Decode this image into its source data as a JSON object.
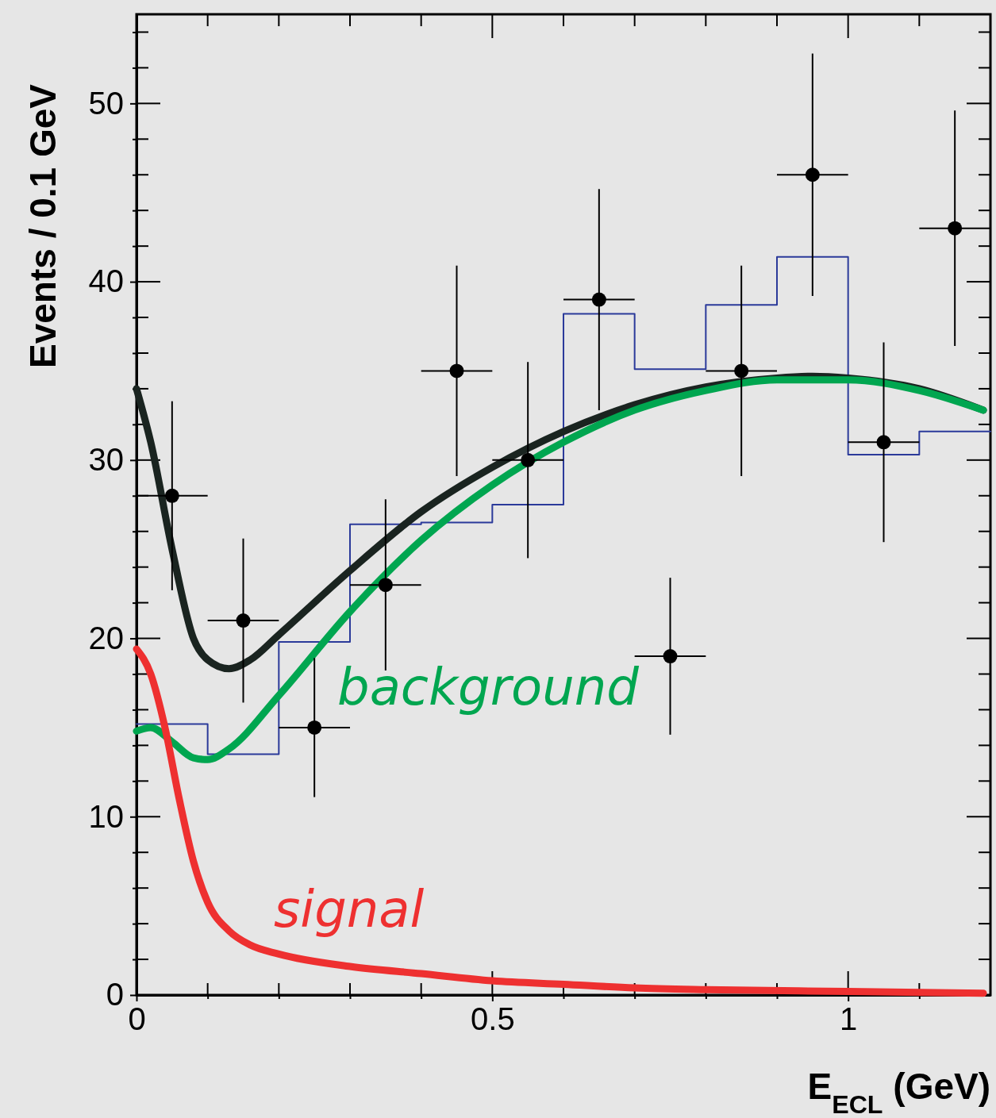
{
  "chart_data": {
    "type": "scatter",
    "xlabel": "E$_{ECL}$ (GeV)",
    "ylabel": "Events / 0.1 GeV",
    "xlim": [
      0,
      1.2
    ],
    "ylim": [
      0,
      55
    ],
    "xticks": [
      0,
      {
        "value": 0.1,
        "label": null
      },
      {
        "value": 0.2,
        "label": null
      },
      {
        "value": 0.3,
        "label": null
      },
      {
        "value": 0.4,
        "label": null
      },
      0.5,
      {
        "value": 0.6,
        "label": null
      },
      {
        "value": 0.7,
        "label": null
      },
      {
        "value": 0.8,
        "label": null
      },
      {
        "value": 0.9,
        "label": null
      },
      1,
      {
        "value": 1.1,
        "label": null
      }
    ],
    "yticks": [
      0,
      {
        "value": 2,
        "label": null
      },
      {
        "value": 4,
        "label": null
      },
      {
        "value": 6,
        "label": null
      },
      {
        "value": 8,
        "label": null
      },
      10,
      {
        "value": 12,
        "label": null
      },
      {
        "value": 14,
        "label": null
      },
      {
        "value": 16,
        "label": null
      },
      {
        "value": 18,
        "label": null
      },
      20,
      {
        "value": 22,
        "label": null
      },
      {
        "value": 24,
        "label": null
      },
      {
        "value": 26,
        "label": null
      },
      {
        "value": 28,
        "label": null
      },
      30,
      {
        "value": 32,
        "label": null
      },
      {
        "value": 34,
        "label": null
      },
      {
        "value": 36,
        "label": null
      },
      {
        "value": 38,
        "label": null
      },
      40,
      {
        "value": 42,
        "label": null
      },
      {
        "value": 44,
        "label": null
      },
      {
        "value": 46,
        "label": null
      },
      {
        "value": 48,
        "label": null
      },
      50,
      {
        "value": 52,
        "label": null
      },
      {
        "value": 54,
        "label": null
      }
    ],
    "grid": false,
    "legend": false,
    "series": [
      {
        "type": "step",
        "color": "#2b3a9a",
        "x": [
          0,
          0.1,
          0.2,
          0.3,
          0.4,
          0.5,
          0.6,
          0.7,
          0.8,
          0.9,
          1.0,
          1.1,
          1.2
        ],
        "values": [
          15.2,
          13.5,
          19.8,
          26.4,
          26.5,
          27.5,
          38.2,
          35.1,
          38.7,
          41.4,
          30.3,
          31.6,
          31.6
        ]
      },
      {
        "type": "line",
        "color": "#1a2420",
        "x": [
          0,
          0.02,
          0.05,
          0.08,
          0.1,
          0.13,
          0.16,
          0.2,
          0.3,
          0.4,
          0.5,
          0.6,
          0.7,
          0.8,
          0.9,
          0.95,
          1.0,
          1.1,
          1.19
        ],
        "values": [
          34,
          31,
          25,
          20,
          18.8,
          18.3,
          18.8,
          20.2,
          23.8,
          27.1,
          29.6,
          31.6,
          33.1,
          34.1,
          34.6,
          34.7,
          34.6,
          34,
          32.8
        ]
      },
      {
        "type": "line",
        "name": "background",
        "color": "#00a650",
        "x": [
          0,
          0.02,
          0.05,
          0.08,
          0.1,
          0.13,
          0.2,
          0.3,
          0.4,
          0.5,
          0.6,
          0.7,
          0.8,
          0.9,
          1.0,
          1.1,
          1.19
        ],
        "values": [
          14.8,
          15,
          14.2,
          13.3,
          13.2,
          13.8,
          16.8,
          21.5,
          25.5,
          28.6,
          31,
          32.8,
          33.9,
          34.5,
          34.5,
          33.9,
          32.8
        ]
      },
      {
        "type": "line",
        "name": "signal",
        "color": "#ee3030",
        "x": [
          0,
          0.02,
          0.04,
          0.06,
          0.08,
          0.1,
          0.13,
          0.16,
          0.2,
          0.3,
          0.4,
          0.5,
          0.6,
          0.7,
          0.8,
          1.0,
          1.19
        ],
        "values": [
          19.4,
          18,
          15,
          11,
          7.5,
          5.2,
          3.6,
          2.8,
          2.3,
          1.6,
          1.2,
          0.8,
          0.6,
          0.4,
          0.3,
          0.2,
          0.1
        ]
      },
      {
        "type": "scatter",
        "color": "#000000",
        "marker": "circle",
        "x": [
          0.05,
          0.15,
          0.25,
          0.35,
          0.45,
          0.55,
          0.65,
          0.75,
          0.85,
          0.95,
          1.05,
          1.15
        ],
        "values": [
          28,
          21,
          15,
          23,
          35,
          30,
          39,
          19,
          35,
          46,
          31,
          43
        ],
        "errors": [
          5.3,
          4.6,
          3.9,
          4.8,
          5.9,
          5.5,
          6.2,
          4.4,
          5.9,
          6.8,
          5.6,
          6.6
        ],
        "xerrors": [
          0.05,
          0.05,
          0.05,
          0.05,
          0.05,
          0.05,
          0.05,
          0.05,
          0.05,
          0.05,
          0.05,
          0.05
        ]
      }
    ]
  }
}
